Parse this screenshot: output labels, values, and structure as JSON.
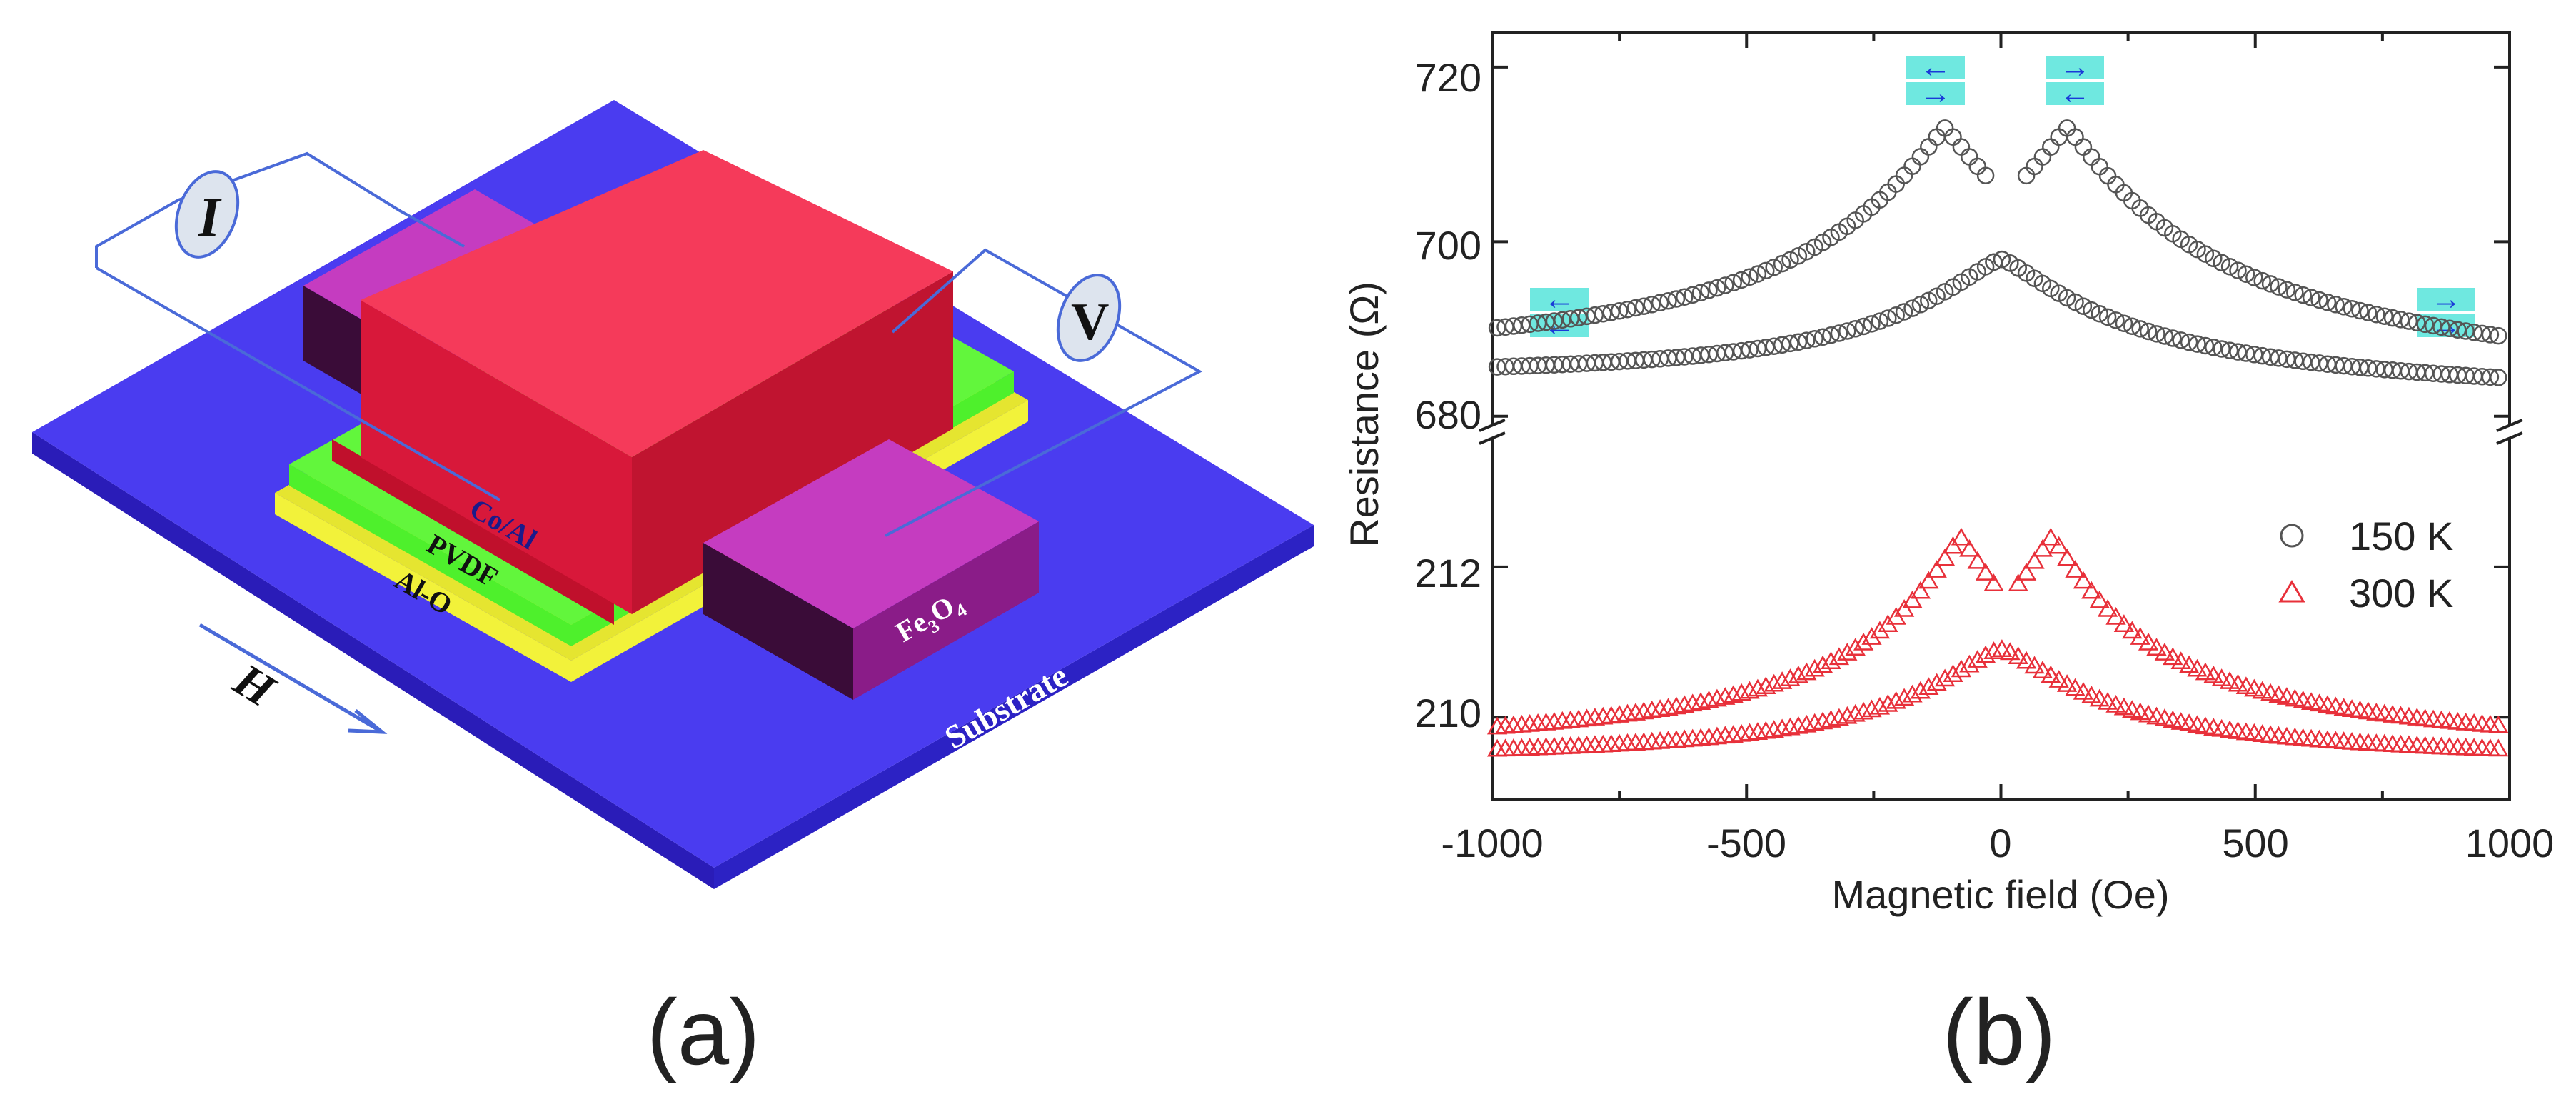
{
  "panel_a": {
    "caption": "(a)",
    "labels": {
      "current": "I",
      "voltage": "V",
      "co_al": "Co/Al",
      "pvdf": "PVDF",
      "al_o": "Al-O",
      "fe3o4_base": "Fe",
      "fe3o4_sub3": "3",
      "fe3o4_o": "O",
      "fe3o4_sub4": "4",
      "substrate": "Substrate",
      "field": "H"
    },
    "colors": {
      "substrate": "#4a3cf0",
      "co_al": "#f53a5a",
      "fe3o4": "#c53cc0",
      "pvdf": "#4ef02c",
      "al_o": "#f2f23a",
      "wire": "#4a6ad8"
    }
  },
  "panel_b": {
    "caption": "(b)",
    "colors": {
      "series_150K": "#555555",
      "series_300K": "#e8303a",
      "arrow_box": "#6fe8e0",
      "arrow": "#1a3ad8"
    }
  },
  "chart_data": {
    "type": "scatter",
    "xlabel": "Magnetic field (Oe)",
    "ylabel": "Resistance (Ω)",
    "xlim": [
      -1000,
      1000
    ],
    "xticks": [
      "-1000",
      "-500",
      "0",
      "500",
      "1000"
    ],
    "broken_axis": true,
    "upper_panel": {
      "ylim": [
        679,
        724
      ],
      "yticks": [
        "720",
        "700",
        "680"
      ]
    },
    "lower_panel": {
      "ylim": [
        208.9,
        213.7
      ],
      "yticks": [
        "212",
        "210"
      ]
    },
    "legend_position": "right",
    "series": [
      {
        "name": "150 K",
        "marker": "circle",
        "panel": "upper",
        "peak_x": [
          -110,
          130
        ],
        "peak_y": 713,
        "center_y": 698,
        "baseline_y_left": 683.5,
        "baseline_y_right": 682
      },
      {
        "name": "300 K",
        "marker": "triangle",
        "panel": "lower",
        "peak_x": [
          -80,
          100
        ],
        "peak_y": 212.4,
        "center_y": 210.9,
        "baseline_y": 209.4
      }
    ],
    "magnetization_arrows": [
      {
        "position": "left",
        "top": "←",
        "bottom": "←"
      },
      {
        "position": "center-left",
        "top": "←",
        "bottom": "→"
      },
      {
        "position": "center-right",
        "top": "→",
        "bottom": "←"
      },
      {
        "position": "right",
        "top": "→",
        "bottom": "→"
      }
    ]
  }
}
